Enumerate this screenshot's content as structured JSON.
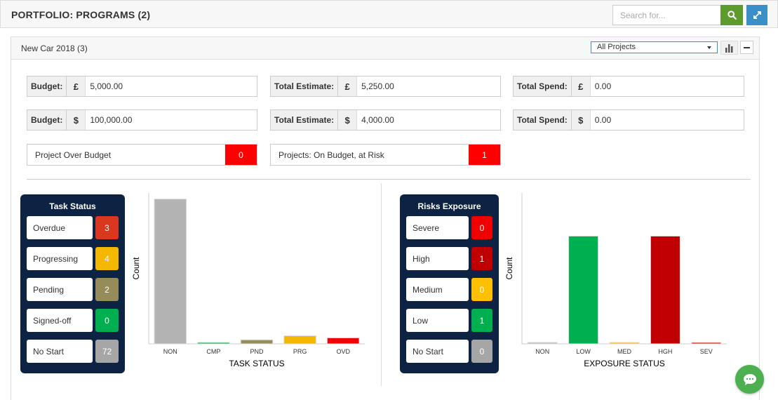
{
  "header": {
    "title": "PORTFOLIO: PROGRAMS (2)",
    "search_placeholder": "Search for...",
    "search_icon": "search-icon",
    "expand_icon": "expand-icon"
  },
  "panel": {
    "title": "New Car 2018 (3)",
    "project_filter": "All Projects",
    "chart_icon": "bar-chart-icon",
    "collapse_icon": "minus-icon"
  },
  "budget_rows": [
    {
      "budget": {
        "label": "Budget:",
        "currency": "£",
        "value": "5,000.00"
      },
      "estimate": {
        "label": "Total Estimate:",
        "currency": "£",
        "value": "5,250.00"
      },
      "spend": {
        "label": "Total Spend:",
        "currency": "£",
        "value": "0.00"
      }
    },
    {
      "budget": {
        "label": "Budget:",
        "currency": "$",
        "value": "100,000.00"
      },
      "estimate": {
        "label": "Total Estimate:",
        "currency": "$",
        "value": "4,000.00"
      },
      "spend": {
        "label": "Total Spend:",
        "currency": "$",
        "value": "0.00"
      }
    }
  ],
  "alerts": [
    {
      "label": "Project Over Budget",
      "count": "0"
    },
    {
      "label": "Projects: On Budget, at Risk",
      "count": "1"
    }
  ],
  "task_status": {
    "title": "Task Status",
    "items": [
      {
        "label": "Overdue",
        "count": "3",
        "color": "#d9381e"
      },
      {
        "label": "Progressing",
        "count": "4",
        "color": "#f5b800"
      },
      {
        "label": "Pending",
        "count": "2",
        "color": "#958c5a"
      },
      {
        "label": "Signed-off",
        "count": "0",
        "color": "#00b050"
      },
      {
        "label": "No Start",
        "count": "72",
        "color": "#a6a6a6"
      }
    ]
  },
  "risk_exposure": {
    "title": "Risks Exposure",
    "items": [
      {
        "label": "Severe",
        "count": "0",
        "color": "#f00000"
      },
      {
        "label": "High",
        "count": "1",
        "color": "#c00000"
      },
      {
        "label": "Medium",
        "count": "0",
        "color": "#ffc000"
      },
      {
        "label": "Low",
        "count": "1",
        "color": "#00b050"
      },
      {
        "label": "No Start",
        "count": "0",
        "color": "#a6a6a6"
      }
    ]
  },
  "chart_data": [
    {
      "type": "bar",
      "xlabel": "TASK STATUS",
      "ylabel": "Count",
      "categories": [
        "NON",
        "CMP",
        "PND",
        "PRG",
        "OVD"
      ],
      "values": [
        72,
        0,
        2,
        4,
        3
      ],
      "colors": [
        "#b3b3b3",
        "#00b050",
        "#958c5a",
        "#f5b800",
        "#f00000"
      ],
      "ylim": [
        0,
        75
      ],
      "grid": false
    },
    {
      "type": "bar",
      "xlabel": "EXPOSURE STATUS",
      "ylabel": "Count",
      "categories": [
        "NON",
        "LOW",
        "MED",
        "HGH",
        "SEV"
      ],
      "values": [
        0,
        1,
        0,
        1,
        0
      ],
      "colors": [
        "#b3b3b3",
        "#00b050",
        "#ffc000",
        "#c00000",
        "#f00000"
      ],
      "ylim": [
        0,
        1.4
      ],
      "grid": false
    }
  ],
  "chat_icon": "chat-bubble-icon"
}
